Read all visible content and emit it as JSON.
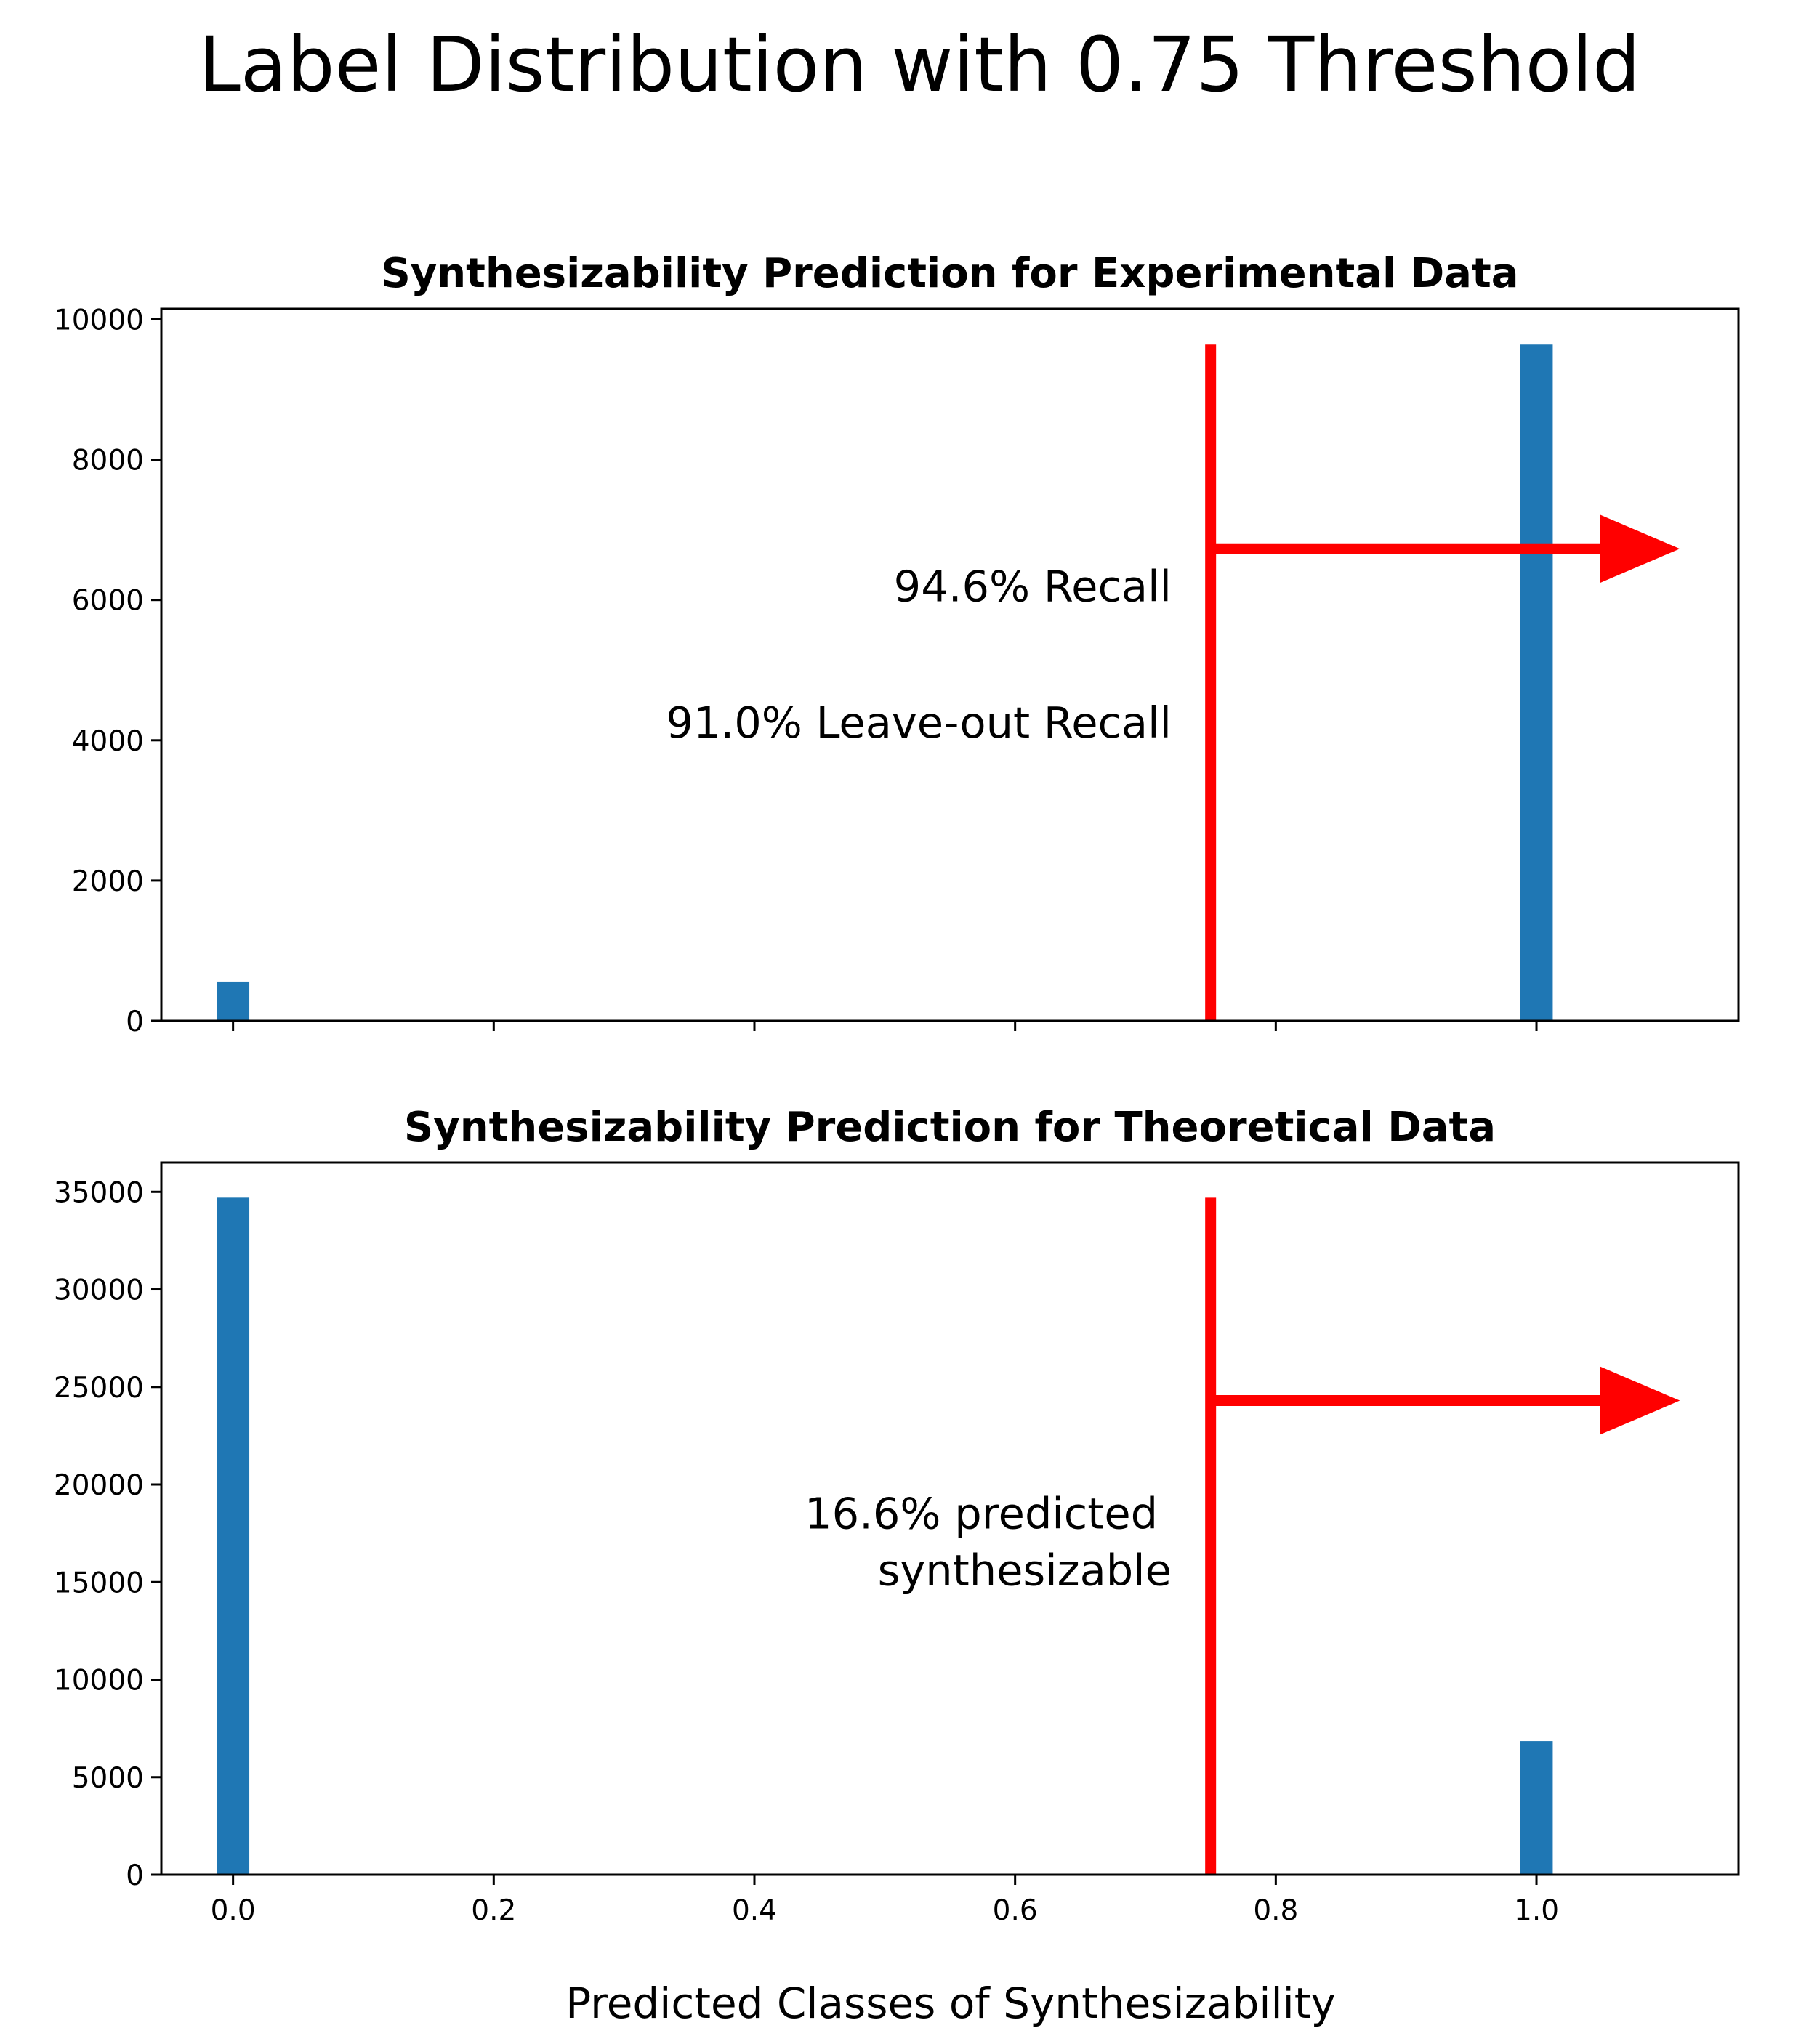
{
  "figure": {
    "suptitle": "Label Distribution with 0.75 Threshold",
    "xlabel": "Predicted Classes of Synthesizability"
  },
  "colors": {
    "bar": "#1f77b4",
    "threshold": "#ff0000",
    "axes": "#000000"
  },
  "chart_data": [
    {
      "type": "bar",
      "title": "Synthesizability Prediction for Experimental Data",
      "xlabel": "",
      "ylabel": "",
      "x": [
        0.0,
        1.0
      ],
      "values": [
        560,
        9640
      ],
      "bar_width": 0.025,
      "xlim": [
        -0.055,
        1.155
      ],
      "ylim": [
        0,
        10150
      ],
      "xticks": [
        0.0,
        0.2,
        0.4,
        0.6,
        0.8,
        1.0
      ],
      "xtick_labels": [],
      "yticks": [
        0,
        2000,
        4000,
        6000,
        8000,
        10000
      ],
      "ytick_labels": [
        "0",
        "2000",
        "4000",
        "6000",
        "8000",
        "10000"
      ],
      "threshold": 0.75,
      "threshold_top": 9640,
      "arrow": {
        "x_start": 0.75,
        "x_end": 1.11,
        "y": 6730
      },
      "annotations": [
        {
          "lines": [
            "94.6% Recall"
          ],
          "x": 0.72,
          "y": 5980
        },
        {
          "lines": [
            "91.0% Leave-out Recall"
          ],
          "x": 0.72,
          "y": 4040
        }
      ],
      "grid": false,
      "legend": "none"
    },
    {
      "type": "bar",
      "title": "Synthesizability Prediction for Theoretical Data",
      "xlabel": "Predicted Classes of Synthesizability",
      "ylabel": "",
      "x": [
        0.0,
        1.0
      ],
      "values": [
        34700,
        6850
      ],
      "bar_width": 0.025,
      "xlim": [
        -0.055,
        1.155
      ],
      "ylim": [
        0,
        36500
      ],
      "xticks": [
        0.0,
        0.2,
        0.4,
        0.6,
        0.8,
        1.0
      ],
      "xtick_labels": [
        "0.0",
        "0.2",
        "0.4",
        "0.6",
        "0.8",
        "1.0"
      ],
      "yticks": [
        0,
        5000,
        10000,
        15000,
        20000,
        25000,
        30000,
        35000
      ],
      "ytick_labels": [
        "0",
        "5000",
        "10000",
        "15000",
        "20000",
        "25000",
        "30000",
        "35000"
      ],
      "threshold": 0.75,
      "threshold_top": 34700,
      "arrow": {
        "x_start": 0.75,
        "x_end": 1.11,
        "y": 24300
      },
      "annotations": [
        {
          "lines": [
            "16.6% predicted ",
            "synthesizable"
          ],
          "x": 0.72,
          "y": 16300
        }
      ],
      "grid": false,
      "legend": "none"
    }
  ]
}
